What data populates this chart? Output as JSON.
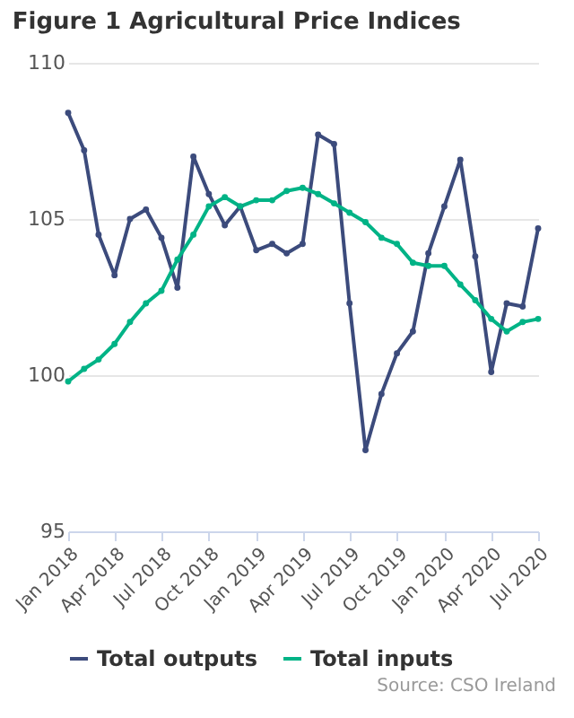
{
  "chart_data": {
    "type": "line",
    "title": "Figure 1 Agricultural Price Indices",
    "x": [
      "2018-01",
      "2018-02",
      "2018-03",
      "2018-04",
      "2018-05",
      "2018-06",
      "2018-07",
      "2018-08",
      "2018-09",
      "2018-10",
      "2018-11",
      "2018-12",
      "2019-01",
      "2019-02",
      "2019-03",
      "2019-04",
      "2019-05",
      "2019-06",
      "2019-07",
      "2019-08",
      "2019-09",
      "2019-10",
      "2019-11",
      "2019-12",
      "2020-01",
      "2020-02",
      "2020-03",
      "2020-04",
      "2020-05",
      "2020-06",
      "2020-07"
    ],
    "series": [
      {
        "name": "Total outputs",
        "color": "#3c4b7c",
        "values": [
          108.4,
          107.2,
          104.5,
          103.2,
          105.0,
          105.3,
          104.4,
          102.8,
          107.0,
          105.8,
          104.8,
          105.4,
          104.0,
          104.2,
          103.9,
          104.2,
          107.7,
          107.4,
          102.3,
          97.6,
          99.4,
          100.7,
          101.4,
          103.9,
          105.4,
          106.9,
          103.8,
          100.1,
          102.3,
          102.2,
          104.7
        ]
      },
      {
        "name": "Total inputs",
        "color": "#00b386",
        "values": [
          99.8,
          100.2,
          100.5,
          101.0,
          101.7,
          102.3,
          102.7,
          103.7,
          104.5,
          105.4,
          105.7,
          105.4,
          105.6,
          105.6,
          105.9,
          106.0,
          105.8,
          105.5,
          105.2,
          104.9,
          104.4,
          104.2,
          103.6,
          103.5,
          103.5,
          102.9,
          102.4,
          101.8,
          101.4,
          101.7,
          101.8
        ]
      }
    ],
    "xlim": [
      "2018-01",
      "2020-07"
    ],
    "xticks": [
      {
        "value": "2018-01",
        "label": "Jan 2018"
      },
      {
        "value": "2018-04",
        "label": "Apr 2018"
      },
      {
        "value": "2018-07",
        "label": "Jul 2018"
      },
      {
        "value": "2018-10",
        "label": "Oct 2018"
      },
      {
        "value": "2019-01",
        "label": "Jan 2019"
      },
      {
        "value": "2019-04",
        "label": "Apr 2019"
      },
      {
        "value": "2019-07",
        "label": "Jul 2019"
      },
      {
        "value": "2019-10",
        "label": "Oct 2019"
      },
      {
        "value": "2020-01",
        "label": "Jan 2020"
      },
      {
        "value": "2020-04",
        "label": "Apr 2020"
      },
      {
        "value": "2020-07",
        "label": "Jul 2020"
      }
    ],
    "ylim": [
      95,
      110
    ],
    "yticks": [
      95,
      100,
      105,
      110
    ],
    "grid": "y",
    "legend": "bottom",
    "marker": "circle",
    "line_style": "solid",
    "annotations": [
      "Source: CSO Ireland"
    ]
  }
}
